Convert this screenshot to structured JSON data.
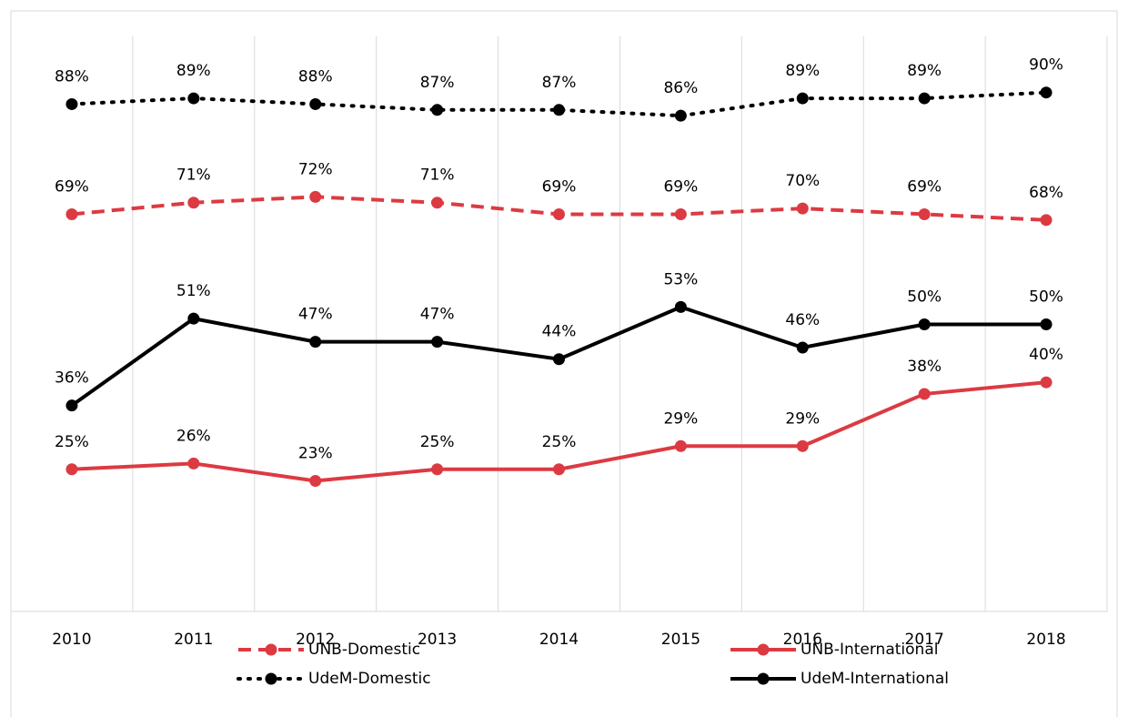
{
  "chart_data": {
    "type": "line",
    "categories": [
      "2010",
      "2011",
      "2012",
      "2013",
      "2014",
      "2015",
      "2016",
      "2017",
      "2018"
    ],
    "series": [
      {
        "name": "UNB-Domestic",
        "color": "#dc3a42",
        "dash": "dashed",
        "values": [
          69,
          71,
          72,
          71,
          69,
          69,
          70,
          69,
          68
        ],
        "value_labels": [
          "69%",
          "71%",
          "72%",
          "71%",
          "69%",
          "69%",
          "70%",
          "69%",
          "68%"
        ]
      },
      {
        "name": "UNB-International",
        "color": "#dc3a42",
        "dash": "solid",
        "values": [
          25,
          26,
          23,
          25,
          25,
          29,
          29,
          38,
          40
        ],
        "value_labels": [
          "25%",
          "26%",
          "23%",
          "25%",
          "25%",
          "29%",
          "29%",
          "38%",
          "40%"
        ]
      },
      {
        "name": "UdeM-Domestic",
        "color": "#000000",
        "dash": "dotted",
        "values": [
          88,
          89,
          88,
          87,
          87,
          86,
          89,
          89,
          90
        ],
        "value_labels": [
          "88%",
          "89%",
          "88%",
          "87%",
          "87%",
          "86%",
          "89%",
          "89%",
          "90%"
        ]
      },
      {
        "name": "UdeM-International",
        "color": "#000000",
        "dash": "solid",
        "values": [
          36,
          51,
          47,
          47,
          44,
          53,
          46,
          50,
          50
        ],
        "value_labels": [
          "36%",
          "51%",
          "47%",
          "47%",
          "44%",
          "53%",
          "46%",
          "50%",
          "50%"
        ]
      }
    ],
    "ylim": [
      0,
      100
    ],
    "grid": true,
    "legend": "bottom"
  }
}
